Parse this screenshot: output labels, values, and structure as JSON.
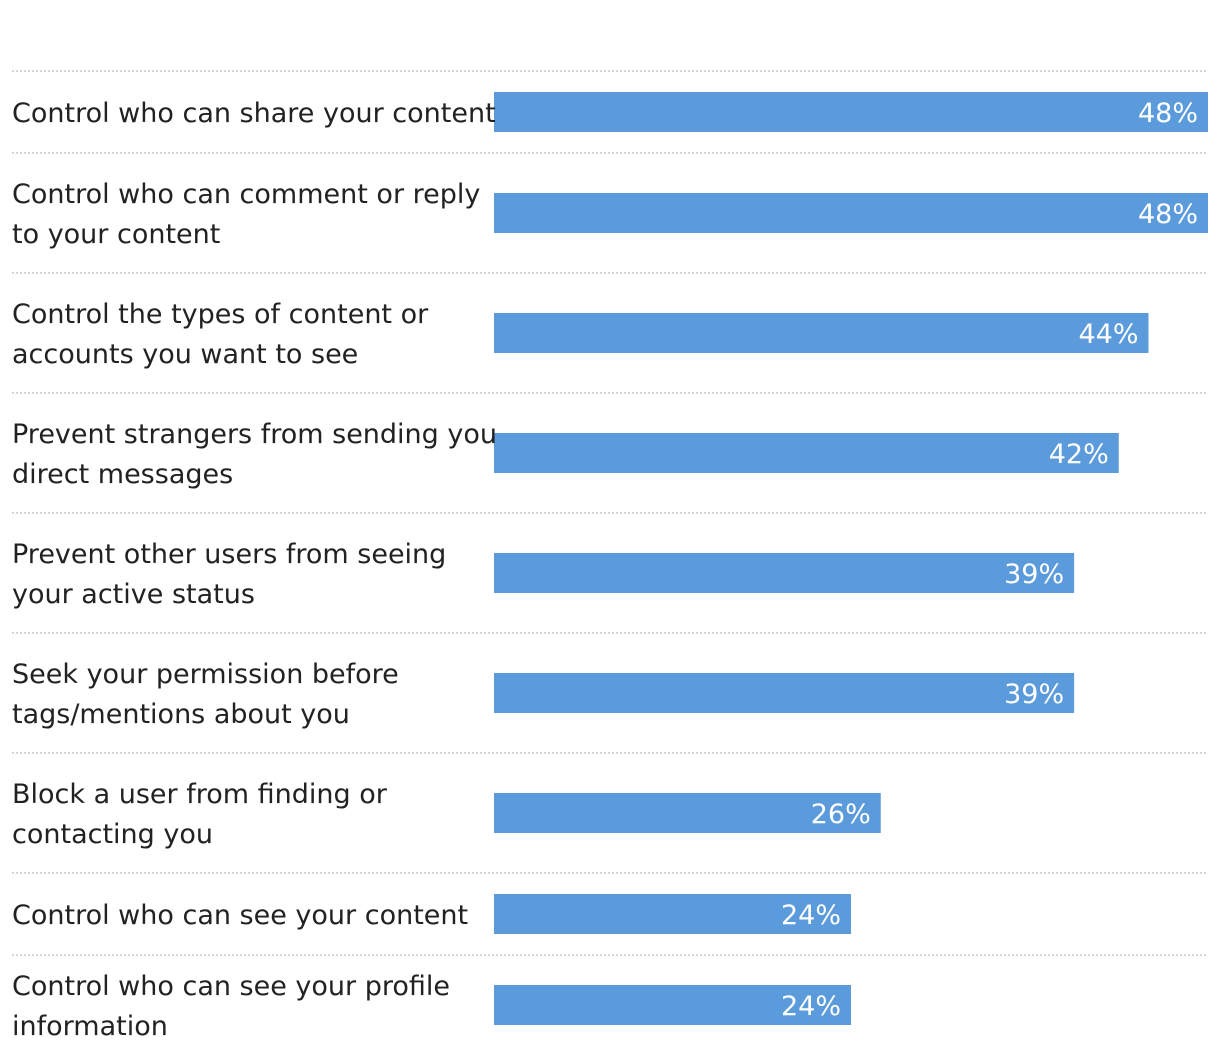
{
  "colors": {
    "bar": "#5b9bdb",
    "label": "#222222",
    "value_text": "#ffffff",
    "divider": "#c9c9c9"
  },
  "chart_data": {
    "type": "bar",
    "orientation": "horizontal",
    "title": "",
    "xlabel": "",
    "ylabel": "",
    "xlim": [
      0,
      48
    ],
    "value_suffix": "%",
    "grid": false,
    "legend": "none",
    "categories": [
      [
        "Control who can share your content"
      ],
      [
        "Control who can comment or reply",
        "to your content"
      ],
      [
        "Control the types of content or",
        "accounts you want to see"
      ],
      [
        "Prevent strangers from sending you",
        "direct messages"
      ],
      [
        "Prevent other users from seeing",
        "your active status"
      ],
      [
        "Seek your permission before",
        "tags/mentions about you"
      ],
      [
        "Block a user from finding or",
        "contacting you"
      ],
      [
        "Control who can see your content"
      ],
      [
        "Control who can see your profile",
        "information"
      ]
    ],
    "values": [
      48,
      48,
      44,
      42,
      39,
      39,
      26,
      24,
      24
    ]
  }
}
